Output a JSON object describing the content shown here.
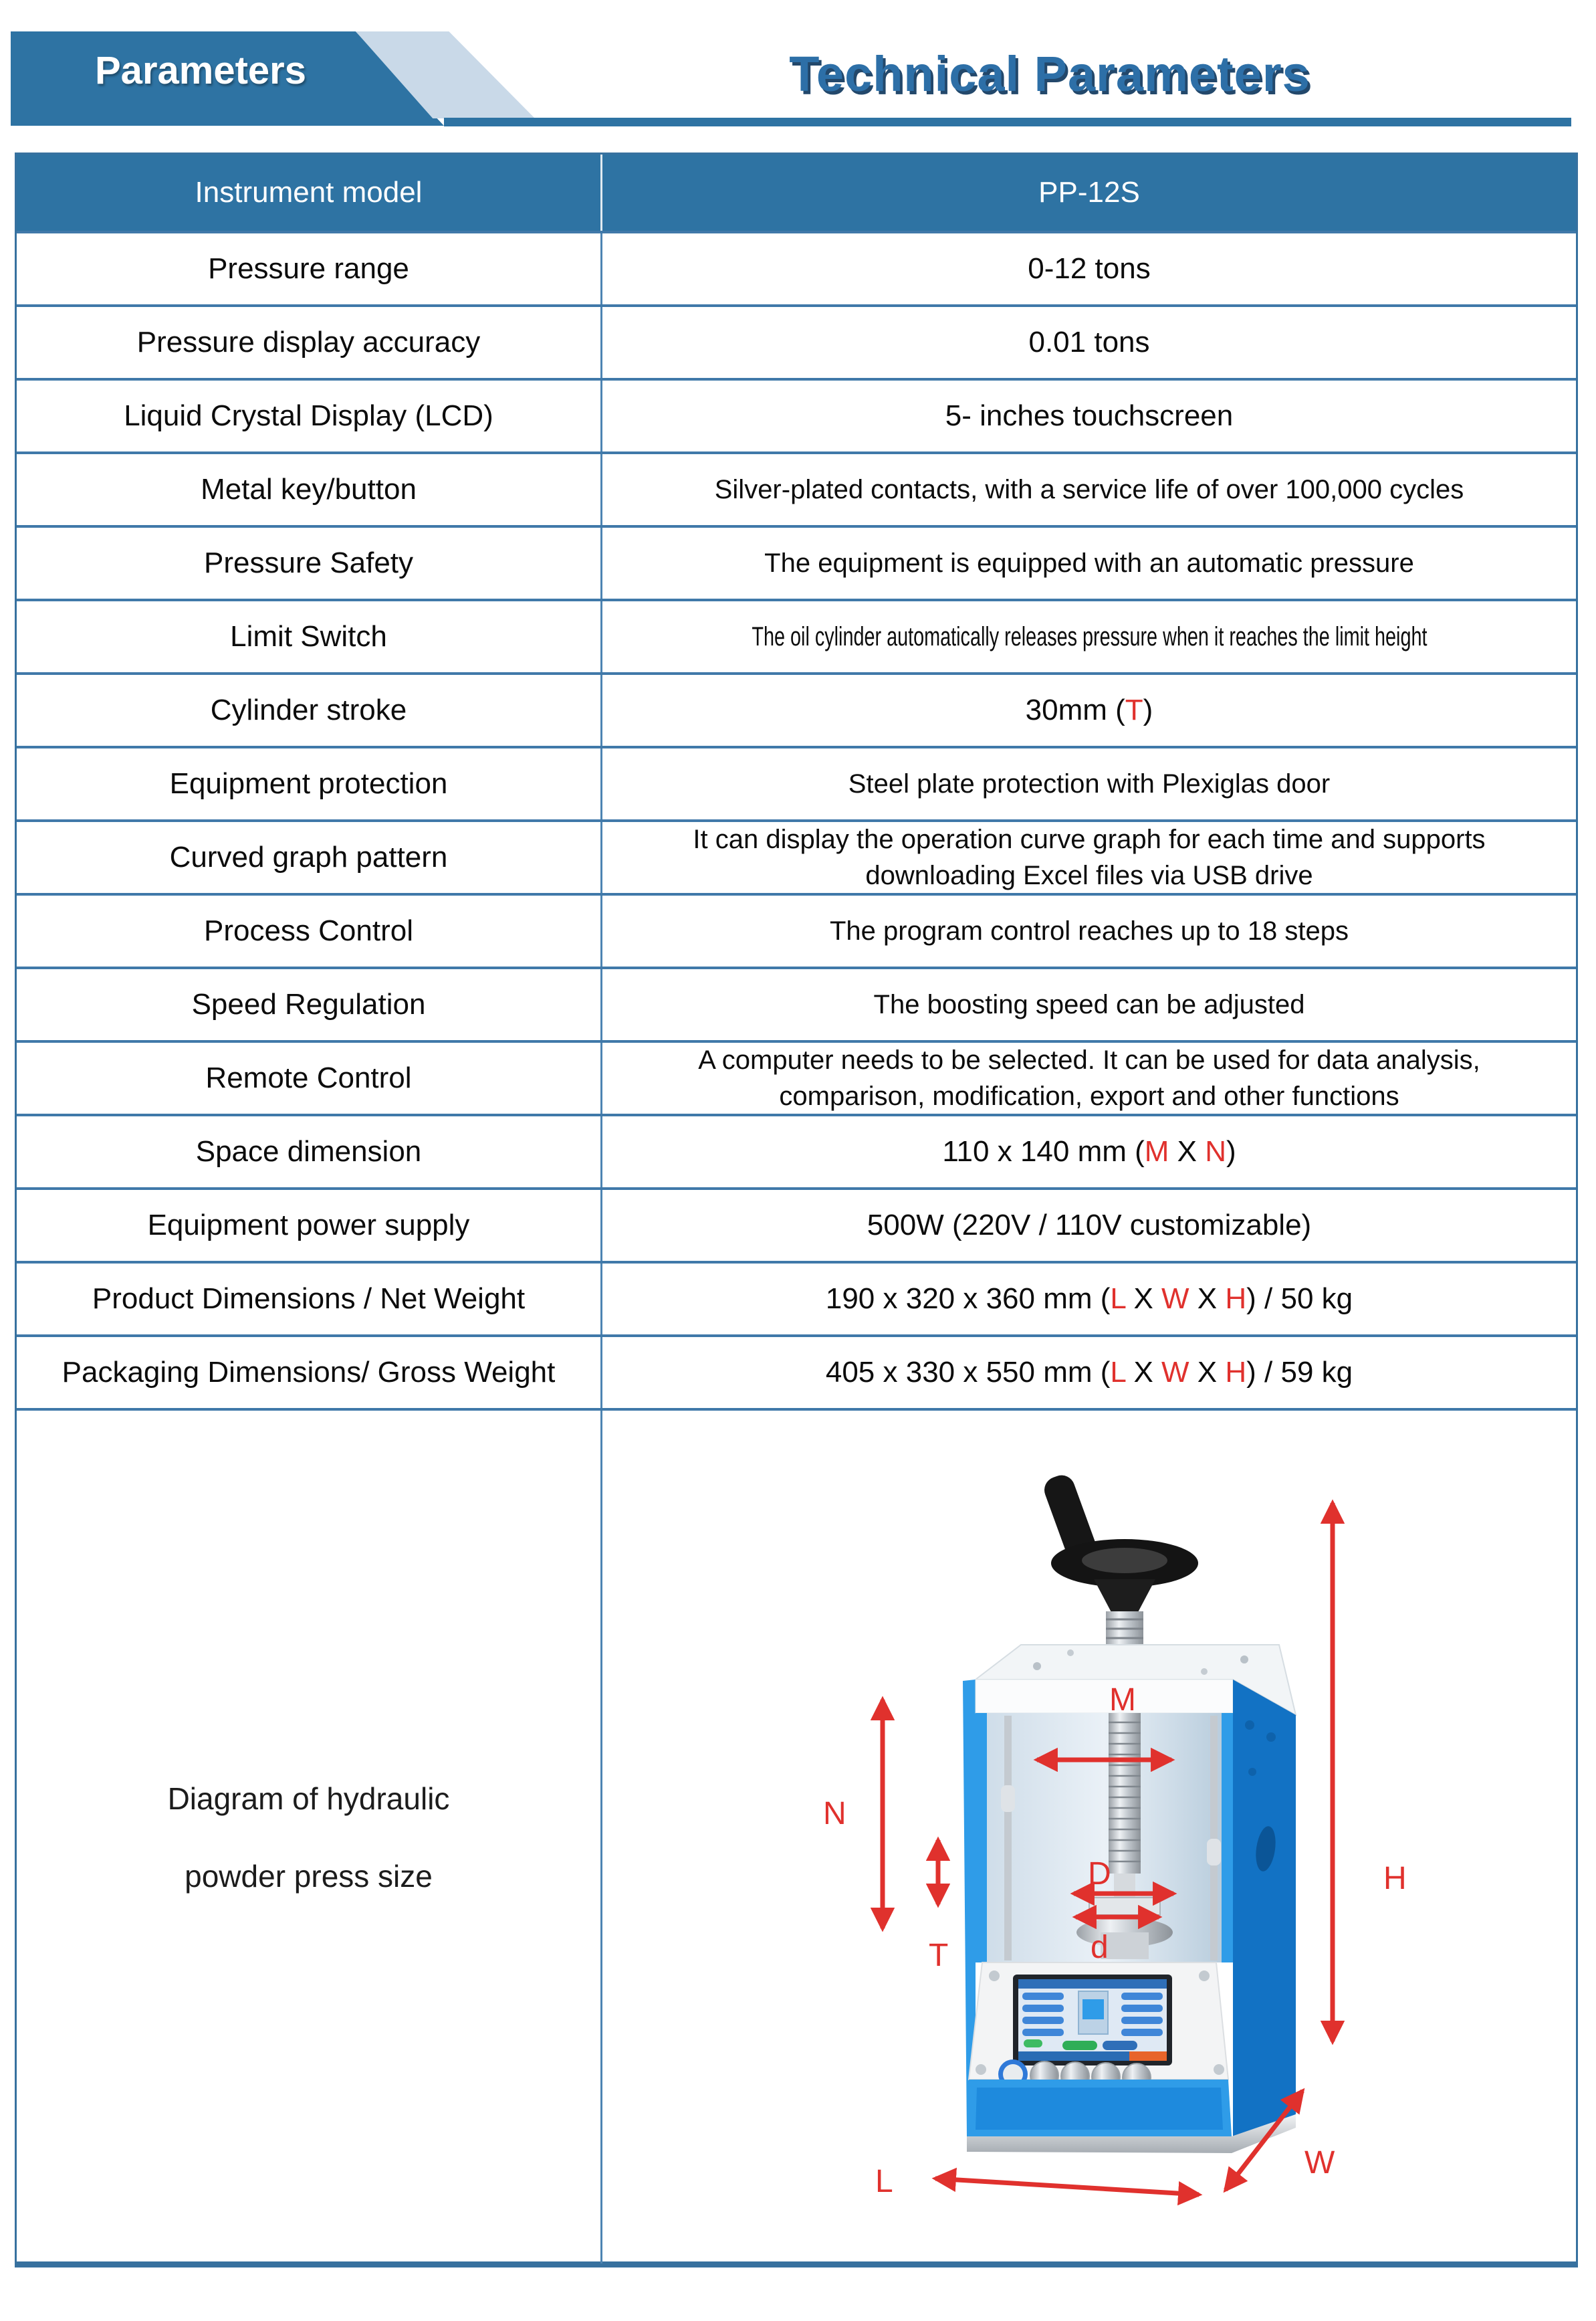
{
  "banner": {
    "tab_label": "Parameters",
    "title": "Technical Parameters"
  },
  "colors": {
    "banner_blue": "#2e73a3",
    "banner_light_accent": "#c9d9e8",
    "table_border_blue": "#4079a9",
    "header_bg": "#2e73a3",
    "accent_red": "#e0312d",
    "machine_blue": "#2f9ce8",
    "machine_side_blue": "#1272c4",
    "title_blue": "#2d6fa7"
  },
  "table": {
    "header": {
      "col1": "Instrument model",
      "col2": "PP-12S"
    },
    "rows": [
      {
        "label": "Pressure range",
        "value": [
          [
            {
              "t": "0-12 tons"
            }
          ]
        ]
      },
      {
        "label": "Pressure display accuracy",
        "value": [
          [
            {
              "t": "0.01 tons"
            }
          ]
        ]
      },
      {
        "label": "Liquid Crystal Display (LCD)",
        "value": [
          [
            {
              "t": "5- inches touchscreen"
            }
          ]
        ]
      },
      {
        "label": "Metal key/button",
        "fit": "v40",
        "value": [
          [
            {
              "t": "Silver-plated contacts, with a service life of over 100,000 cycles"
            }
          ]
        ]
      },
      {
        "label": "Pressure Safety",
        "fit": "v40",
        "value": [
          [
            {
              "t": "The equipment is equipped with an automatic pressure"
            }
          ]
        ]
      },
      {
        "label": "Limit Switch",
        "fit": "vcond",
        "value": [
          [
            {
              "t": "The oil cylinder automatically releases pressure when it reaches the limit height"
            }
          ]
        ]
      },
      {
        "label": "Cylinder stroke",
        "value": [
          [
            {
              "t": "30mm ("
            },
            {
              "t": "T",
              "red": true
            },
            {
              "t": ")"
            }
          ]
        ]
      },
      {
        "label": "Equipment protection",
        "fit": "v40",
        "value": [
          [
            {
              "t": "Steel plate protection with Plexiglas door"
            }
          ]
        ]
      },
      {
        "label": "Curved graph pattern",
        "fit": "v38",
        "value": [
          [
            {
              "t": "It can display the operation curve graph for each time and supports"
            }
          ],
          [
            {
              "t": "downloading Excel files via USB drive"
            }
          ]
        ]
      },
      {
        "label": "Process Control",
        "fit": "v40",
        "value": [
          [
            {
              "t": "The program control reaches up to 18 steps"
            }
          ]
        ]
      },
      {
        "label": "Speed Regulation",
        "fit": "v40",
        "value": [
          [
            {
              "t": "The boosting speed can be adjusted"
            }
          ]
        ]
      },
      {
        "label": "Remote Control",
        "fit": "v38",
        "value": [
          [
            {
              "t": "A computer needs to be selected. It can be used for data analysis,"
            }
          ],
          [
            {
              "t": "comparison, modification, export and other functions"
            }
          ]
        ]
      },
      {
        "label": "Space dimension",
        "value": [
          [
            {
              "t": "110 x 140 mm ("
            },
            {
              "t": "M",
              "red": true
            },
            {
              "t": " X "
            },
            {
              "t": "N",
              "red": true
            },
            {
              "t": ")"
            }
          ]
        ]
      },
      {
        "label": "Equipment power supply",
        "value": [
          [
            {
              "t": "500W (220V / 110V customizable)"
            }
          ]
        ]
      },
      {
        "label": "Product Dimensions / Net Weight",
        "value": [
          [
            {
              "t": "190 x 320 x 360 mm ("
            },
            {
              "t": "L",
              "red": true
            },
            {
              "t": " X "
            },
            {
              "t": "W",
              "red": true
            },
            {
              "t": " X "
            },
            {
              "t": "H",
              "red": true
            },
            {
              "t": ") / 50 kg"
            }
          ]
        ]
      },
      {
        "label": "Packaging Dimensions/ Gross Weight",
        "value": [
          [
            {
              "t": "405 x 330 x 550 mm ("
            },
            {
              "t": "L",
              "red": true
            },
            {
              "t": " X "
            },
            {
              "t": "W",
              "red": true
            },
            {
              "t": " X "
            },
            {
              "t": "H",
              "red": true
            },
            {
              "t": ") / 59 kg"
            }
          ]
        ]
      }
    ],
    "diagram_label_line1": "Diagram of hydraulic",
    "diagram_label_line2": "powder press size"
  },
  "diagram": {
    "labels": {
      "M": "M",
      "N": "N",
      "T": "T",
      "D": "D",
      "d": "d",
      "H": "H",
      "L": "L",
      "W": "W"
    },
    "arrow_color": "#e0312d"
  }
}
